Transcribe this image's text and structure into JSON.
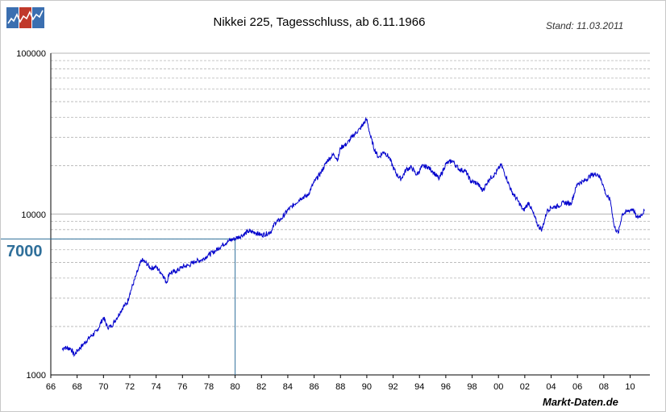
{
  "header": {
    "title": "Nikkei 225, Tagesschluss, ab 6.11.1966",
    "stand": "Stand: 11.03.2011",
    "brand": "Markt-Daten.de"
  },
  "colors": {
    "line": "#0000cc",
    "marker": "#2f6f9a",
    "grid": "#b4b4b4"
  },
  "chart_data": {
    "type": "line",
    "title": "Nikkei 225, Tagesschluss, ab 6.11.1966",
    "xlabel": "",
    "ylabel": "",
    "y_scale": "log",
    "xlim": [
      1966,
      2011.5
    ],
    "ylim": [
      1000,
      100000
    ],
    "x_ticks": [
      "66",
      "68",
      "70",
      "72",
      "74",
      "76",
      "78",
      "80",
      "82",
      "84",
      "86",
      "88",
      "90",
      "92",
      "94",
      "96",
      "98",
      "00",
      "02",
      "04",
      "06",
      "08",
      "10"
    ],
    "y_ticks": [
      "1000",
      "10000",
      "100000"
    ],
    "grid": "horizontal dashed",
    "annotation": {
      "label": "7000",
      "y": 7000,
      "x": 1980
    },
    "x": [
      1966.85,
      1967.0,
      1967.5,
      1967.8,
      1968.0,
      1968.5,
      1969.0,
      1969.5,
      1970.0,
      1970.3,
      1970.6,
      1971.0,
      1971.5,
      1971.8,
      1972.0,
      1972.5,
      1972.9,
      1973.2,
      1973.6,
      1974.0,
      1974.5,
      1974.8,
      1975.0,
      1975.5,
      1976.0,
      1976.5,
      1977.0,
      1977.5,
      1978.0,
      1978.5,
      1979.0,
      1979.5,
      1980.0,
      1980.5,
      1981.0,
      1981.5,
      1982.0,
      1982.5,
      1982.8,
      1983.0,
      1983.5,
      1984.0,
      1984.5,
      1985.0,
      1985.5,
      1986.0,
      1986.5,
      1987.0,
      1987.5,
      1987.8,
      1988.0,
      1988.5,
      1989.0,
      1989.5,
      1989.99,
      1990.3,
      1990.6,
      1990.9,
      1991.3,
      1991.7,
      1992.0,
      1992.3,
      1992.6,
      1993.0,
      1993.4,
      1993.8,
      1994.2,
      1994.6,
      1995.0,
      1995.5,
      1996.0,
      1996.5,
      1997.0,
      1997.5,
      1997.9,
      1998.4,
      1998.8,
      1999.3,
      1999.8,
      2000.2,
      2000.6,
      2001.0,
      2001.5,
      2001.9,
      2002.3,
      2002.7,
      2003.0,
      2003.3,
      2003.7,
      2004.0,
      2004.5,
      2005.0,
      2005.5,
      2006.0,
      2006.5,
      2007.0,
      2007.5,
      2007.8,
      2008.2,
      2008.5,
      2008.8,
      2009.1,
      2009.4,
      2009.8,
      2010.2,
      2010.5,
      2010.8,
      2011.1
    ],
    "y": [
      1440,
      1480,
      1460,
      1330,
      1410,
      1560,
      1730,
      1870,
      2280,
      1980,
      2010,
      2250,
      2650,
      2800,
      3200,
      4200,
      5200,
      5000,
      4600,
      4700,
      4200,
      3750,
      4300,
      4400,
      4700,
      4800,
      5100,
      5200,
      5600,
      5900,
      6400,
      6800,
      7050,
      7350,
      7800,
      7700,
      7400,
      7600,
      7900,
      8800,
      9300,
      10600,
      11500,
      12600,
      13000,
      15800,
      18000,
      21500,
      23500,
      21800,
      25800,
      27400,
      31000,
      34000,
      38900,
      30000,
      25000,
      22500,
      24500,
      22500,
      19500,
      17500,
      16500,
      19000,
      19500,
      17500,
      19800,
      19700,
      18500,
      16500,
      20500,
      21500,
      19000,
      18500,
      16000,
      15500,
      14000,
      16500,
      18000,
      20300,
      16900,
      13800,
      12000,
      10500,
      11800,
      9800,
      8500,
      8000,
      10500,
      11000,
      11200,
      11800,
      11600,
      15500,
      16000,
      17400,
      17800,
      16500,
      13000,
      12200,
      8300,
      7600,
      10000,
      10400,
      10800,
      9500,
      9800,
      10500
    ]
  }
}
